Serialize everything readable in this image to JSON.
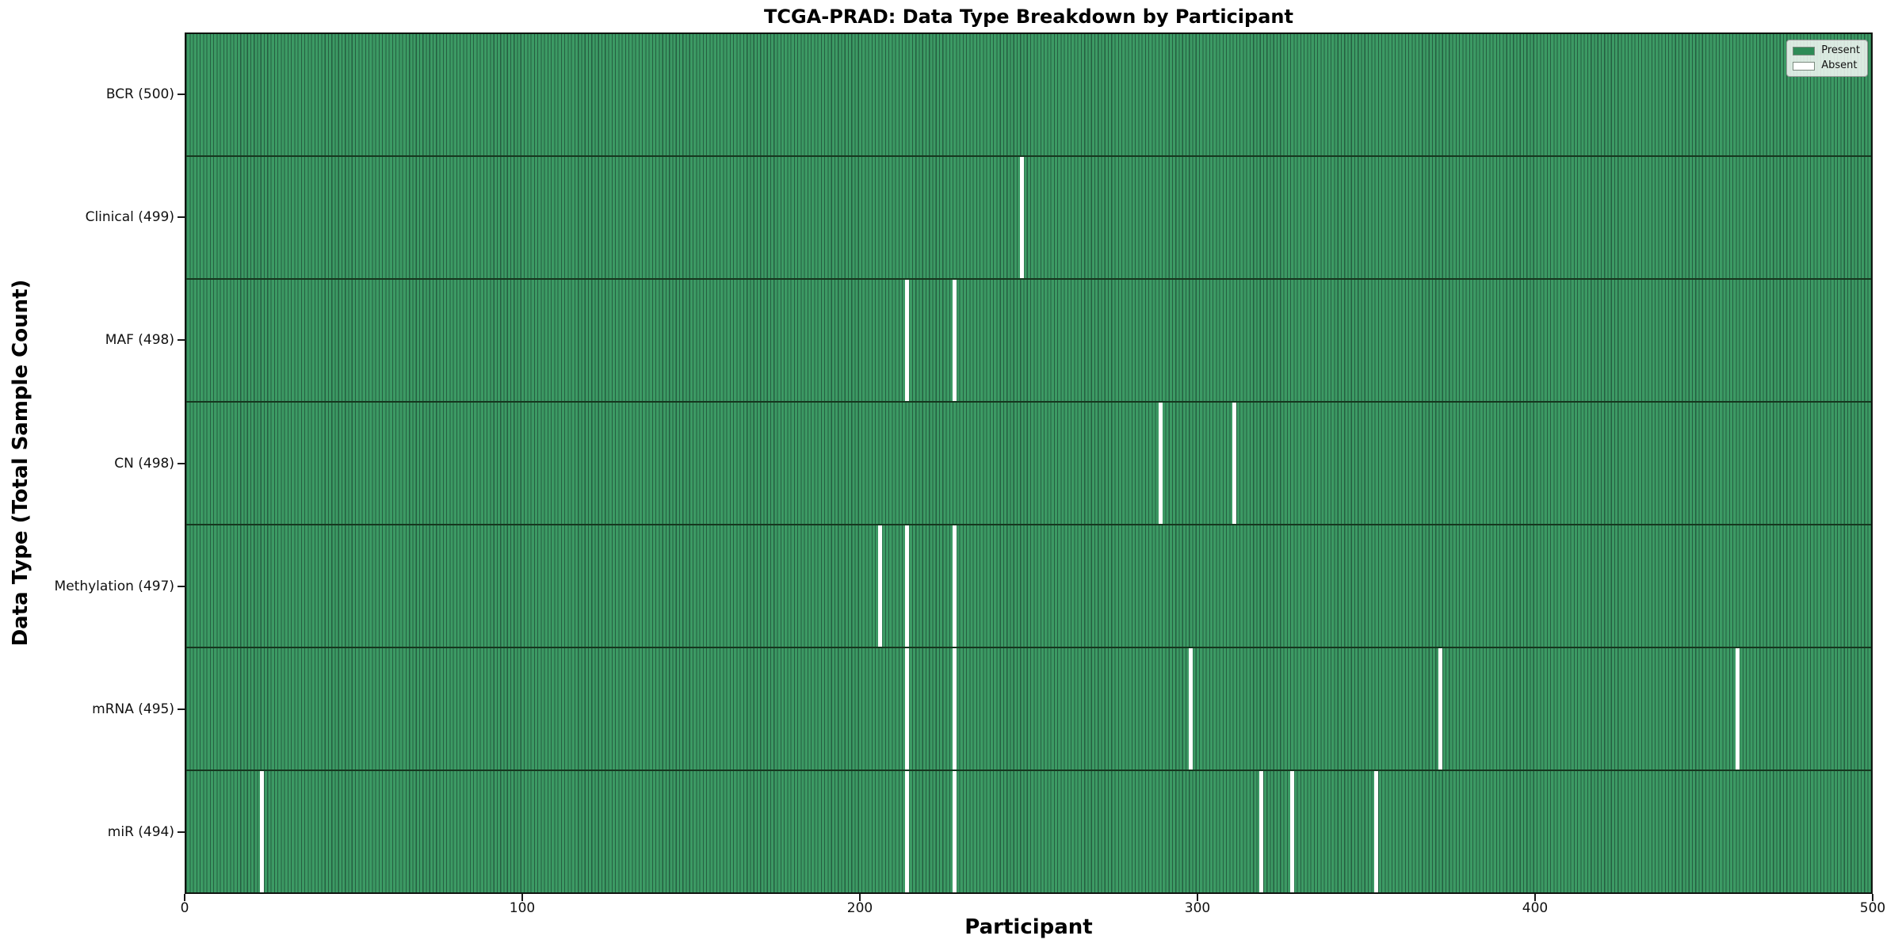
{
  "chart_data": {
    "type": "heatmap",
    "title": "TCGA-PRAD: Data Type Breakdown by Participant",
    "xlabel": "Participant",
    "ylabel": "Data Type (Total Sample Count)",
    "xlim": [
      0,
      500
    ],
    "x_ticks": [
      0,
      100,
      200,
      300,
      400,
      500
    ],
    "n_participants": 500,
    "grid": false,
    "legend": {
      "position": "upper-right",
      "items": [
        {
          "label": "Present",
          "color": "#2e8b57"
        },
        {
          "label": "Absent",
          "color": "#ffffff"
        }
      ]
    },
    "colors": {
      "present_fill": "#3c9a64",
      "bar_edge": "#255f41",
      "row_divider": "#16371f",
      "absent_fill": "#ffffff"
    },
    "rows": [
      {
        "label": "BCR (500)",
        "data_type": "BCR",
        "total": 500,
        "absent_participants": []
      },
      {
        "label": "Clinical (499)",
        "data_type": "Clinical",
        "total": 499,
        "absent_participants": [
          247
        ]
      },
      {
        "label": "MAF (498)",
        "data_type": "MAF",
        "total": 498,
        "absent_participants": [
          213,
          227
        ]
      },
      {
        "label": "CN (498)",
        "data_type": "CN",
        "total": 498,
        "absent_participants": [
          288,
          310
        ]
      },
      {
        "label": "Methylation (497)",
        "data_type": "Methylation",
        "total": 497,
        "absent_participants": [
          205,
          213,
          227
        ]
      },
      {
        "label": "mRNA (495)",
        "data_type": "mRNA",
        "total": 495,
        "absent_participants": [
          213,
          227,
          297,
          371,
          459
        ]
      },
      {
        "label": "miR (494)",
        "data_type": "miR",
        "total": 494,
        "absent_participants": [
          22,
          213,
          227,
          318,
          327,
          352
        ]
      }
    ]
  }
}
